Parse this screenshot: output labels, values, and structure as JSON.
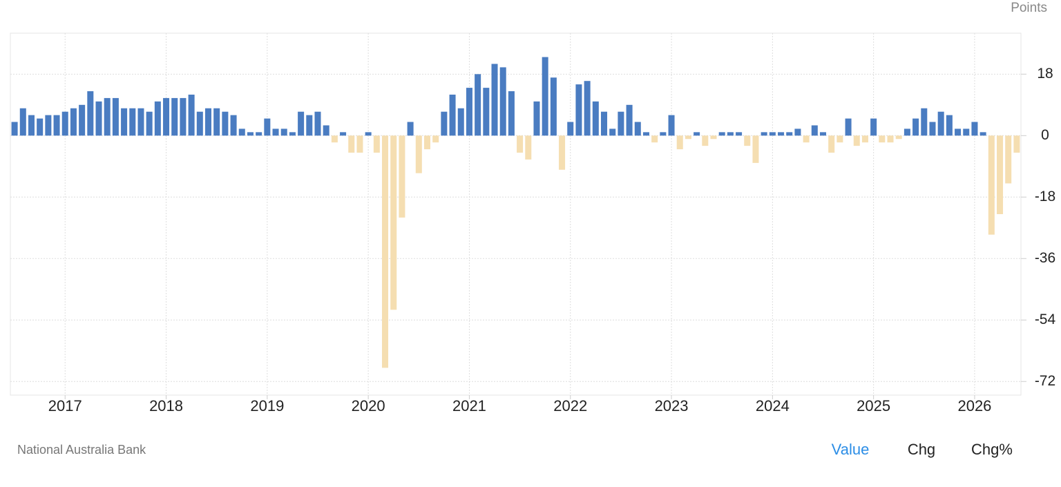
{
  "chart_data": {
    "type": "bar",
    "y_label": "Points",
    "source": "National Australia Bank",
    "buttons": [
      "Value",
      "Chg",
      "Chg%"
    ],
    "active_button": 0,
    "categories": [
      null,
      null,
      null,
      null,
      null,
      null,
      "2017",
      null,
      null,
      null,
      null,
      null,
      null,
      null,
      null,
      null,
      null,
      null,
      "2018",
      null,
      null,
      null,
      null,
      null,
      null,
      null,
      null,
      null,
      null,
      null,
      "2019",
      null,
      null,
      null,
      null,
      null,
      null,
      null,
      null,
      null,
      null,
      null,
      "2020",
      null,
      null,
      null,
      null,
      null,
      null,
      null,
      null,
      null,
      null,
      null,
      "2021",
      null,
      null,
      null,
      null,
      null,
      null,
      null,
      null,
      null,
      null,
      null,
      "2022",
      null,
      null,
      null,
      null,
      null,
      null,
      null,
      null,
      null,
      null,
      null,
      "2023",
      null,
      null,
      null,
      null,
      null,
      null,
      null,
      null,
      null,
      null,
      null,
      "2024",
      null,
      null,
      null,
      null,
      null,
      null,
      null,
      null,
      null,
      null,
      null,
      "2025",
      null,
      null,
      null,
      null,
      null,
      null,
      null,
      null,
      null,
      null,
      null,
      "2026",
      null,
      null,
      null,
      null,
      null
    ],
    "values": [
      4,
      8,
      6,
      5,
      6,
      6,
      7,
      8,
      9,
      13,
      10,
      11,
      11,
      8,
      8,
      8,
      7,
      10,
      11,
      11,
      11,
      12,
      7,
      8,
      8,
      7,
      6,
      2,
      1,
      1,
      5,
      2,
      2,
      1,
      7,
      6,
      7,
      3,
      -2,
      1,
      -5,
      -5,
      1,
      -5,
      -68,
      -51,
      -24,
      4,
      -11,
      -4,
      -2,
      7,
      12,
      8,
      14,
      18,
      14,
      21,
      20,
      13,
      -5,
      -7,
      10,
      23,
      17,
      -10,
      4,
      15,
      16,
      10,
      7,
      2,
      7,
      9,
      4,
      1,
      -2,
      1,
      6,
      -4,
      -1,
      1,
      -3,
      -1,
      1,
      1,
      1,
      -3,
      -8,
      1,
      1,
      1,
      1,
      2,
      -2,
      3,
      1,
      -5,
      -2,
      5,
      -3,
      -2,
      5,
      -2,
      -2,
      -1,
      2,
      5,
      8,
      4,
      7,
      6,
      2,
      2,
      4,
      1,
      -29,
      -23,
      -14,
      -5
    ],
    "color_positive": "#4a7cc1",
    "color_negative": "#f5deb1",
    "ylim": [
      -76,
      30
    ],
    "yticks": [
      -72,
      -54,
      -36,
      -18,
      0,
      18
    ],
    "grid": true
  }
}
